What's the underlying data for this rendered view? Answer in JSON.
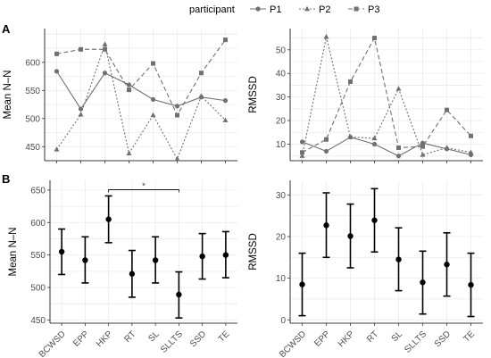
{
  "legend": {
    "title": "participant",
    "entries": [
      {
        "name": "P1",
        "marker": "circle",
        "dash": "solid",
        "color": "#707070"
      },
      {
        "name": "P2",
        "marker": "triangle",
        "dash": "dotted",
        "color": "#707070"
      },
      {
        "name": "P3",
        "marker": "square",
        "dash": "dashed",
        "color": "#707070"
      }
    ]
  },
  "panel_letters": {
    "a": "A",
    "b": "B"
  },
  "significance": {
    "label": "*",
    "from": "HKP",
    "to": "SLLTS"
  },
  "chart_data": [
    {
      "type": "line",
      "panel": "A-left",
      "categories": [
        "BCWSD",
        "EPP",
        "HKP",
        "RT",
        "SL",
        "SLLTS",
        "SSD",
        "TE"
      ],
      "ylabel": "Mean N–N",
      "ylim": [
        425,
        660
      ],
      "yticks": [
        450,
        500,
        550,
        600
      ],
      "series": [
        {
          "name": "P1",
          "values": [
            584,
            517,
            581,
            560,
            534,
            522,
            538,
            532
          ]
        },
        {
          "name": "P2",
          "values": [
            445,
            507,
            632,
            438,
            506,
            428,
            540,
            497
          ]
        },
        {
          "name": "P3",
          "values": [
            615,
            623,
            623,
            551,
            598,
            506,
            581,
            640
          ]
        }
      ]
    },
    {
      "type": "line",
      "panel": "A-right",
      "categories": [
        "BCWSD",
        "EPP",
        "HKP",
        "RT",
        "SL",
        "SLLTS",
        "SSD",
        "TE"
      ],
      "ylabel": "RMSSD",
      "ylim": [
        3,
        59
      ],
      "yticks": [
        10,
        20,
        30,
        40,
        50
      ],
      "series": [
        {
          "name": "P1",
          "values": [
            11,
            7,
            13,
            10,
            5,
            10.5,
            8,
            5.5
          ]
        },
        {
          "name": "P2",
          "values": [
            5,
            55.5,
            13,
            12.5,
            33.5,
            5.5,
            8.5,
            6.5
          ]
        },
        {
          "name": "P3",
          "values": [
            6.5,
            12,
            36.5,
            55,
            8.5,
            9,
            24.5,
            13.5
          ]
        }
      ]
    },
    {
      "type": "errorbar",
      "panel": "B-left",
      "categories": [
        "BCWSD",
        "EPP",
        "HKP",
        "RT",
        "SL",
        "SLLTS",
        "SSD",
        "TE"
      ],
      "ylabel": "Mean N–N",
      "ylim": [
        445,
        665
      ],
      "yticks": [
        450,
        500,
        550,
        600,
        650
      ],
      "points": [
        {
          "mean": 555,
          "low": 520,
          "high": 590
        },
        {
          "mean": 542,
          "low": 507,
          "high": 578
        },
        {
          "mean": 605,
          "low": 569,
          "high": 641
        },
        {
          "mean": 521,
          "low": 485,
          "high": 557
        },
        {
          "mean": 542,
          "low": 507,
          "high": 578
        },
        {
          "mean": 489,
          "low": 453,
          "high": 524
        },
        {
          "mean": 548,
          "low": 513,
          "high": 583
        },
        {
          "mean": 550,
          "low": 515,
          "high": 586
        }
      ]
    },
    {
      "type": "errorbar",
      "panel": "B-right",
      "categories": [
        "BCWSD",
        "EPP",
        "HKP",
        "RT",
        "SL",
        "SLLTS",
        "SSD",
        "TE"
      ],
      "ylabel": "RMSSD",
      "ylim": [
        -0.8,
        33.5
      ],
      "yticks": [
        0,
        10,
        20,
        30
      ],
      "points": [
        {
          "mean": 8.5,
          "low": 1,
          "high": 16
        },
        {
          "mean": 22.7,
          "low": 15,
          "high": 30.5
        },
        {
          "mean": 20.1,
          "low": 12.5,
          "high": 27.8
        },
        {
          "mean": 23.9,
          "low": 16.3,
          "high": 31.5
        },
        {
          "mean": 14.5,
          "low": 7,
          "high": 22.1
        },
        {
          "mean": 9,
          "low": 1.4,
          "high": 16.5
        },
        {
          "mean": 13.3,
          "low": 5.7,
          "high": 20.9
        },
        {
          "mean": 8.4,
          "low": 0.8,
          "high": 16
        }
      ]
    }
  ]
}
